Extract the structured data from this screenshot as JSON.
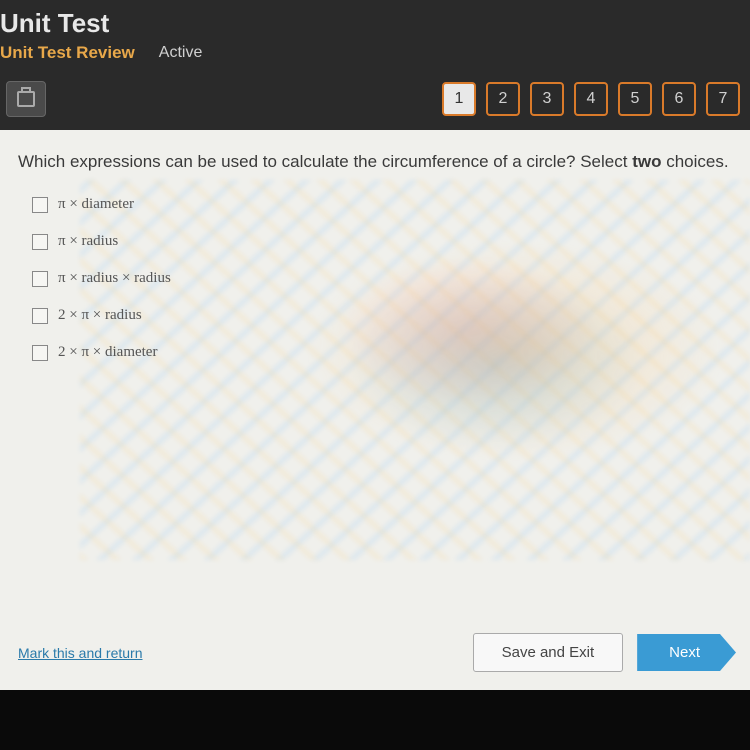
{
  "header": {
    "title": "Unit Test",
    "subtitle": "Unit Test Review",
    "status": "Active"
  },
  "nav": {
    "questions": [
      "1",
      "2",
      "3",
      "4",
      "5",
      "6",
      "7"
    ],
    "active_index": 0
  },
  "question": {
    "prompt_pre": "Which expressions can be used to calculate the circumference of a circle? Select ",
    "prompt_bold": "two",
    "prompt_post": " choices."
  },
  "options": [
    {
      "label": "π × diameter"
    },
    {
      "label": "π × radius"
    },
    {
      "label": "π × radius × radius"
    },
    {
      "label": "2 × π × radius"
    },
    {
      "label": "2 × π × diameter"
    }
  ],
  "footer": {
    "mark_link": "Mark this and return",
    "save_exit": "Save and Exit",
    "next": "Next"
  },
  "colors": {
    "header_bg": "#2a2a2a",
    "accent": "#e8a84a",
    "qnum_border": "#d97a2a",
    "content_bg": "#f0f0ec",
    "next_bg": "#3a9bd4",
    "link": "#2a7aaa"
  }
}
